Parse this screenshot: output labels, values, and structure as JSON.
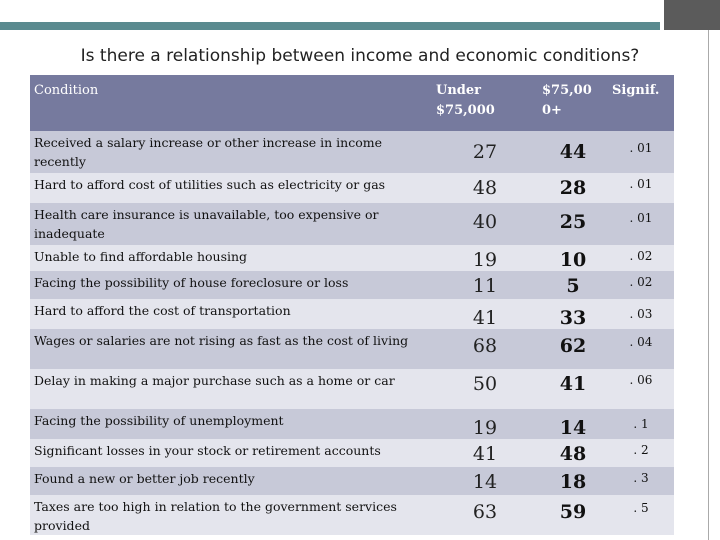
{
  "title": "Is there a relationship between income and economic conditions?",
  "columns": {
    "condition": "Condition",
    "under": "Under $75,000",
    "over": "$75,00 0+",
    "signif": "Signif."
  },
  "rows": [
    {
      "condition": "Received a salary increase or other increase in income recently",
      "under": "27",
      "over": "44",
      "signif": ". 01"
    },
    {
      "condition": "Hard to afford cost of utilities such as electricity or gas",
      "under": "48",
      "over": "28",
      "signif": ". 01"
    },
    {
      "condition": "Health care insurance is unavailable, too expensive or inadequate",
      "under": "40",
      "over": "25",
      "signif": ". 01"
    },
    {
      "condition": "Unable to find affordable housing",
      "under": "19",
      "over": "10",
      "signif": ". 02"
    },
    {
      "condition": "Facing the possibility of house foreclosure or loss",
      "under": "11",
      "over": "5",
      "signif": ". 02"
    },
    {
      "condition": "Hard to afford the cost of transportation",
      "under": "41",
      "over": "33",
      "signif": ". 03"
    },
    {
      "condition": "Wages or salaries are not rising as fast as the cost of living",
      "under": "68",
      "over": "62",
      "signif": ". 04"
    },
    {
      "condition": "Delay in making a major purchase such as a home or car",
      "under": "50",
      "over": "41",
      "signif": ". 06"
    },
    {
      "condition": "Facing the possibility of unemployment",
      "under": "19",
      "over": "14",
      "signif": ". 1"
    },
    {
      "condition": "Significant losses in your stock or retirement accounts",
      "under": "41",
      "over": "48",
      "signif": ". 2"
    },
    {
      "condition": "Found a new or better job recently",
      "under": "14",
      "over": "18",
      "signif": ". 3"
    },
    {
      "condition": "Taxes are too high in relation to the government services provided",
      "under": "63",
      "over": "59",
      "signif": ". 5"
    }
  ]
}
